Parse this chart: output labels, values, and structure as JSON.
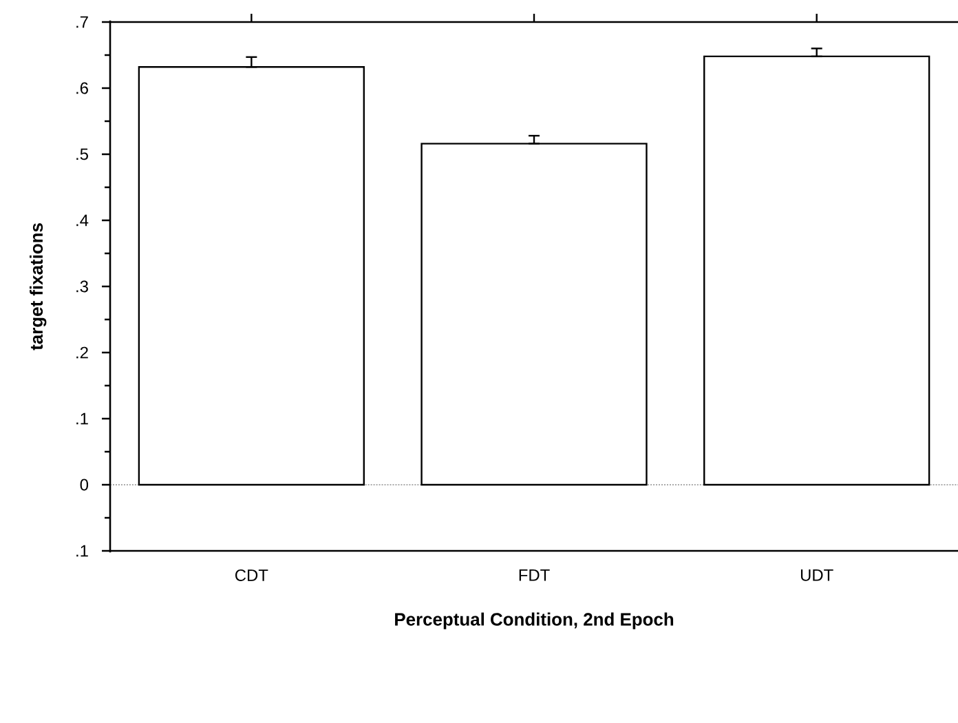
{
  "chart_data": {
    "type": "bar",
    "xlabel": "Perceptual Condition, 2nd Epoch",
    "ylabel": "target fixations",
    "categories": [
      "CDT",
      "FDT",
      "UDT"
    ],
    "values": [
      0.632,
      0.516,
      0.648
    ],
    "errors": [
      [
        0.632,
        0.647
      ],
      [
        0.516,
        0.528
      ],
      [
        0.648,
        0.66
      ]
    ],
    "color": "#ffffff",
    "ylim": [
      -0.1,
      0.7
    ],
    "yticks": [
      {
        "value": -0.1,
        "label": ".1"
      },
      {
        "value": -0.05,
        "label": null
      },
      0,
      {
        "value": 0.05,
        "label": null
      },
      {
        "value": 0.1,
        "label": ".1"
      },
      {
        "value": 0.15,
        "label": null
      },
      {
        "value": 0.2,
        "label": ".2"
      },
      {
        "value": 0.25,
        "label": null
      },
      {
        "value": 0.3,
        "label": ".3"
      },
      {
        "value": 0.35,
        "label": null
      },
      {
        "value": 0.4,
        "label": ".4"
      },
      {
        "value": 0.45,
        "label": null
      },
      {
        "value": 0.5,
        "label": ".5"
      },
      {
        "value": 0.55,
        "label": null
      },
      {
        "value": 0.6,
        "label": ".6"
      },
      {
        "value": 0.65,
        "label": null
      },
      {
        "value": 0.7,
        "label": ".7"
      }
    ],
    "ref_lines": [
      {
        "axis": "y",
        "value": 0,
        "color": "#aaaaaa",
        "line_style": "dotted"
      }
    ]
  }
}
